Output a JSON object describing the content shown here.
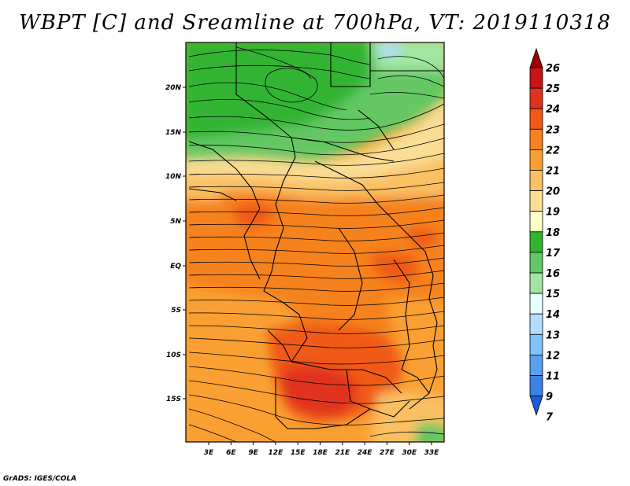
{
  "title": "WBPT [C] and Sreamline at 700hPa, VT: 2019110318",
  "credit": "GrADS: IGES/COLA",
  "lat_ticks": [
    "20N",
    "15N",
    "10N",
    "5N",
    "EQ",
    "5S",
    "10S",
    "15S"
  ],
  "lon_ticks": [
    "3E",
    "6E",
    "9E",
    "12E",
    "15E",
    "18E",
    "21E",
    "24E",
    "27E",
    "30E",
    "33E"
  ],
  "colorbar": {
    "labels": [
      "26",
      "25",
      "24",
      "23",
      "22",
      "21",
      "20",
      "19",
      "18",
      "17",
      "16",
      "15",
      "14",
      "13",
      "12",
      "11",
      "9",
      "7"
    ],
    "colors": [
      "#a00000",
      "#c81414",
      "#e0321e",
      "#f05a14",
      "#f5821e",
      "#faa032",
      "#fac064",
      "#fade96",
      "#ffffc8",
      "#32b432",
      "#64c864",
      "#a0e6a0",
      "#e6ffff",
      "#b4dcff",
      "#82c3ff",
      "#5aa0f0",
      "#3c82e6",
      "#1e5adc"
    ]
  }
}
